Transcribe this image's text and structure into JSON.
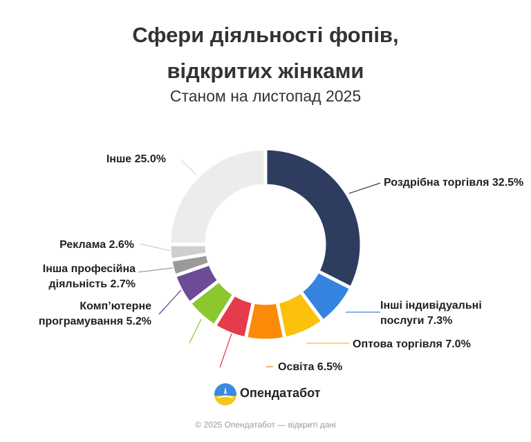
{
  "title_line1": "Сфери діяльності фопів,",
  "title_line2": "відкритих жінками",
  "subtitle": "Станом на листопад 2025",
  "brand": {
    "name": "Опендатабот",
    "logo_icon": "opendatabot-logo-icon",
    "logo_colors": [
      "#3a8be0",
      "#f5c518"
    ]
  },
  "footer": "© 2025 Опендатабот — відкриті дані",
  "chart_data": {
    "type": "pie",
    "variant": "donut",
    "slices": [
      {
        "label": "Роздрібна торгівля",
        "value": 32.5,
        "display": "Роздрібна торгівля 32.5%",
        "color": "#2e3d5f"
      },
      {
        "label": "Інші індивідуальні послуги",
        "value": 7.3,
        "display": [
          "Інші індивідуальні",
          "послуги 7.3%"
        ],
        "color": "#3584df"
      },
      {
        "label": "Оптова торгівля",
        "value": 7.0,
        "display": "Оптова торгівля 7.0%",
        "color": "#fcc10c"
      },
      {
        "label": "Освіта",
        "value": 6.5,
        "display": "Освіта 6.5%",
        "color": "#fb8a09"
      },
      {
        "label": "",
        "value": 5.6,
        "display": "",
        "color": "#e63b4a"
      },
      {
        "label": "",
        "value": 5.6,
        "display": "",
        "color": "#8bc72f"
      },
      {
        "label": "Комп’ютерне програмування",
        "value": 5.2,
        "display": [
          "Комп’ютерне",
          "програмування 5.2%"
        ],
        "color": "#6c4b97"
      },
      {
        "label": "Інша професійна діяльність",
        "value": 2.7,
        "display": [
          "Інша професійна",
          "діяльність 2.7%"
        ],
        "color": "#9a9a9a"
      },
      {
        "label": "Реклама",
        "value": 2.6,
        "display": "Реклама 2.6%",
        "color": "#cfcfcf"
      },
      {
        "label": "Інше",
        "value": 25.0,
        "display": "Інше 25.0%",
        "color": "#ececec"
      }
    ]
  }
}
